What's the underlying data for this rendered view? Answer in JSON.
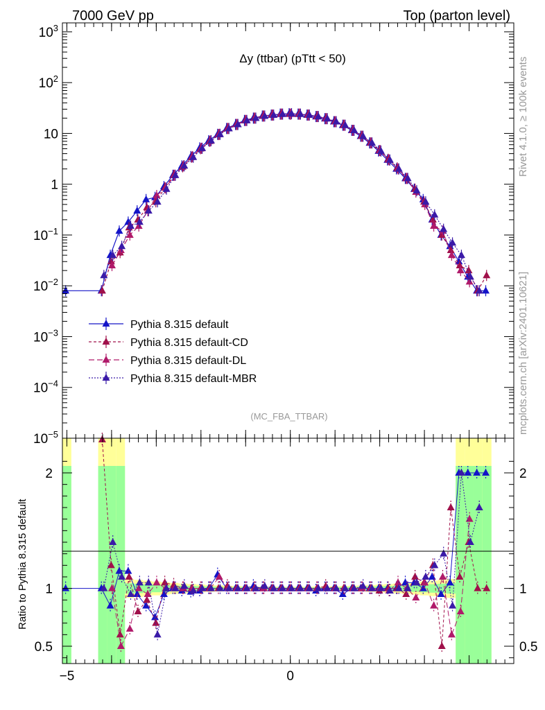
{
  "header": {
    "beam": "7000 GeV pp",
    "process": "Top (parton level)",
    "plot_title": "Δy (ttbar) (pTtt < 50)",
    "analysis": "(MC_FBA_TTBAR)",
    "side_label_top": "Rivet 4.1.0, ≥ 100k events",
    "side_label_bottom": "mcplots.cern.ch [arXiv:2401.10621]"
  },
  "chart_data": {
    "type": "line",
    "title": "Δy (ttbar) (pTtt < 50)",
    "xlabel": "",
    "ylabel": "",
    "ratio_ylabel": "Ratio to Pythia 8.315 default",
    "xlim": [
      -5.1,
      5.0
    ],
    "ylim": [
      1e-05,
      1500
    ],
    "yscale": "log",
    "ratio_ylim": [
      0.35,
      2.3
    ],
    "x_ticks": [
      "−5",
      "0"
    ],
    "x_tick_values": [
      -5,
      0
    ],
    "y_ticks": [
      "10^3",
      "10^2",
      "10",
      "1",
      "10^−1",
      "10^−2",
      "10^−3",
      "10^−4",
      "10^−5"
    ],
    "ratio_ticks": [
      "2",
      "1",
      "0.5"
    ],
    "ratio_tick_values": [
      2,
      1,
      0.5
    ],
    "x": [
      -5.0,
      -4.2,
      -4.0,
      -3.8,
      -3.6,
      -3.4,
      -3.2,
      -3.0,
      -2.8,
      -2.6,
      -2.4,
      -2.2,
      -2.0,
      -1.8,
      -1.6,
      -1.4,
      -1.2,
      -1.0,
      -0.8,
      -0.6,
      -0.4,
      -0.2,
      0.0,
      0.2,
      0.4,
      0.6,
      0.8,
      1.0,
      1.2,
      1.4,
      1.6,
      1.8,
      2.0,
      2.2,
      2.4,
      2.6,
      2.8,
      3.0,
      3.2,
      3.4,
      3.6,
      3.8,
      4.0,
      4.2,
      4.4
    ],
    "series": [
      {
        "name": "Pythia 8.315 default",
        "color": "#1414c8",
        "dash": "solid",
        "values": [
          0.008,
          0.008,
          0.04,
          0.12,
          0.18,
          0.3,
          0.5,
          0.55,
          0.9,
          1.5,
          2.3,
          3.5,
          5.2,
          7.2,
          9.6,
          12.5,
          15,
          18,
          20,
          22,
          23,
          24,
          24.5,
          24,
          23,
          21.5,
          19.5,
          17,
          14.5,
          11.5,
          8.8,
          6.5,
          4.5,
          3.0,
          2.0,
          1.3,
          0.8,
          0.5,
          0.2,
          0.1,
          0.06,
          0.03,
          0.015,
          0.008,
          0.008
        ],
        "ratio": [
          1.0,
          1.0,
          0.85,
          1.15,
          1.15,
          0.95,
          0.85,
          0.75,
          0.95,
          1.0,
          0.98,
          0.97,
          0.98,
          1.0,
          1.12,
          1.0,
          1.0,
          1.0,
          1.02,
          1.0,
          1.0,
          1.0,
          1.0,
          1.0,
          1.0,
          0.98,
          1.0,
          1.0,
          0.95,
          1.0,
          1.0,
          1.0,
          1.0,
          1.0,
          1.0,
          1.05,
          1.05,
          1.0,
          1.1,
          0.95,
          1.05,
          2.0,
          2.0,
          2.0,
          2.0
        ]
      },
      {
        "name": "Pythia 8.315 default-CD",
        "color": "#a0104a",
        "dash": "4,3",
        "values": [
          null,
          0.008,
          0.03,
          0.045,
          0.14,
          0.2,
          0.35,
          0.45,
          0.85,
          1.5,
          2.2,
          3.4,
          5.0,
          7.0,
          9.5,
          12.5,
          15,
          18,
          20,
          22,
          23,
          24,
          24,
          24,
          23,
          21.5,
          19.5,
          17,
          14.5,
          11.5,
          8.8,
          6.5,
          4.6,
          3.1,
          2.1,
          1.3,
          0.8,
          0.45,
          0.2,
          0.1,
          0.05,
          0.025,
          0.02,
          0.008,
          0.016
        ],
        "ratio": [
          null,
          2.3,
          1.2,
          0.6,
          1.1,
          0.8,
          0.9,
          0.7,
          1.05,
          1.03,
          1.0,
          1.0,
          1.0,
          1.0,
          1.0,
          1.02,
          1.0,
          1.0,
          1.0,
          1.0,
          1.0,
          1.0,
          1.0,
          1.0,
          1.0,
          1.0,
          1.02,
          1.0,
          1.0,
          1.0,
          1.0,
          1.0,
          0.98,
          1.0,
          1.0,
          0.95,
          1.1,
          1.05,
          1.2,
          0.5,
          1.7,
          1.1,
          1.4,
          1.0,
          1.0
        ]
      },
      {
        "name": "Pythia 8.315 default-DL",
        "color": "#b01a6a",
        "dash": "8,4",
        "values": [
          null,
          null,
          0.025,
          0.05,
          0.1,
          0.15,
          0.3,
          0.6,
          0.85,
          1.5,
          2.3,
          3.5,
          5.1,
          7.1,
          9.6,
          12.5,
          15,
          18,
          20,
          22,
          23,
          24,
          24,
          24,
          23,
          21.5,
          19.5,
          17,
          14.5,
          11.5,
          8.8,
          6.5,
          4.6,
          3.0,
          2.0,
          1.3,
          0.7,
          0.4,
          0.15,
          0.12,
          0.04,
          0.02,
          0.012,
          null,
          null
        ],
        "ratio": [
          null,
          null,
          1.0,
          0.5,
          0.65,
          1.0,
          0.95,
          1.05,
          1.0,
          1.0,
          1.0,
          1.0,
          1.0,
          1.0,
          1.1,
          1.0,
          1.0,
          1.0,
          1.0,
          1.0,
          1.0,
          1.0,
          1.0,
          1.0,
          1.0,
          1.0,
          1.0,
          1.0,
          1.0,
          1.0,
          1.0,
          1.0,
          1.0,
          0.98,
          1.05,
          1.0,
          0.92,
          1.05,
          0.85,
          1.1,
          0.6,
          0.8,
          1.6,
          null,
          null
        ]
      },
      {
        "name": "Pythia 8.315 default-MBR",
        "color": "#3a1aa8",
        "dash": "2,2",
        "values": [
          null,
          0.016,
          0.04,
          0.06,
          0.15,
          0.18,
          0.3,
          0.45,
          0.8,
          1.5,
          2.3,
          3.4,
          5.1,
          7.2,
          9.6,
          12.5,
          15,
          18,
          20,
          22,
          23,
          24,
          24.5,
          24,
          23,
          21.5,
          19.5,
          17,
          14.5,
          11.5,
          8.8,
          6.5,
          4.5,
          3.0,
          2.0,
          1.3,
          0.75,
          0.45,
          0.25,
          0.13,
          0.07,
          0.04,
          0.015,
          0.008,
          null
        ],
        "ratio": [
          null,
          1.0,
          1.4,
          1.1,
          0.95,
          1.05,
          1.05,
          0.6,
          1.0,
          1.0,
          1.02,
          0.98,
          1.0,
          1.0,
          1.0,
          1.0,
          1.0,
          1.0,
          1.0,
          1.02,
          1.0,
          1.0,
          1.0,
          1.0,
          1.0,
          1.0,
          1.0,
          1.0,
          1.0,
          1.0,
          1.02,
          1.0,
          1.0,
          0.98,
          1.0,
          1.0,
          1.05,
          1.1,
          1.2,
          1.3,
          0.85,
          2.0,
          1.4,
          1.7,
          null
        ]
      }
    ],
    "legend_position": "middle-left"
  }
}
